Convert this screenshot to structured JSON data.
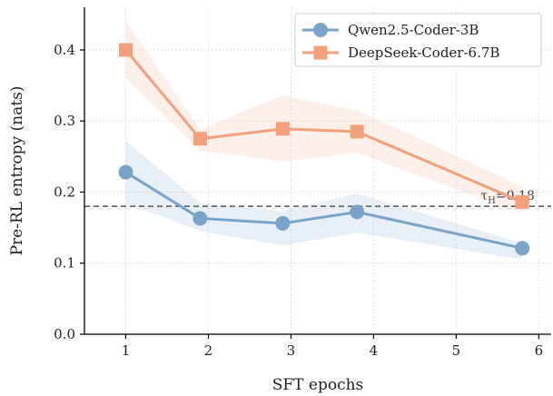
{
  "chart_data": {
    "type": "line",
    "xlabel": "SFT epochs",
    "ylabel": "Pre-RL entropy (nats)",
    "xlim": [
      0.5,
      6.15
    ],
    "ylim": [
      0.0,
      0.46
    ],
    "xticks": [
      1,
      2,
      3,
      4,
      5,
      6
    ],
    "yticks": [
      0.0,
      0.1,
      0.2,
      0.3,
      0.4
    ],
    "ytick_labels": [
      "0.0",
      "0.1",
      "0.2",
      "0.3",
      "0.4"
    ],
    "grid": true,
    "legend_position": "top-right",
    "series": [
      {
        "name": "Qwen2.5-Coder-3B",
        "color": "#7ba3c8",
        "marker": "circle",
        "x": [
          1.0,
          1.9,
          2.9,
          3.8,
          5.8
        ],
        "y": [
          0.228,
          0.163,
          0.156,
          0.172,
          0.121
        ],
        "band_low": [
          0.185,
          0.145,
          0.125,
          0.143,
          0.105
        ],
        "band_high": [
          0.272,
          0.185,
          0.173,
          0.198,
          0.128
        ]
      },
      {
        "name": "DeepSeek-Coder-6.7B",
        "color": "#f2a07b",
        "marker": "square",
        "x": [
          1.0,
          1.9,
          2.9,
          3.8,
          5.8
        ],
        "y": [
          0.4,
          0.275,
          0.289,
          0.285,
          0.186
        ],
        "band_low": [
          0.36,
          0.258,
          0.243,
          0.255,
          0.17
        ],
        "band_high": [
          0.44,
          0.288,
          0.336,
          0.315,
          0.208
        ]
      }
    ],
    "threshold": {
      "y": 0.18,
      "label_symbol": "τ",
      "label_subscript": "H",
      "label_value": "=0.18",
      "color": "#555555",
      "style": "dashed"
    }
  }
}
